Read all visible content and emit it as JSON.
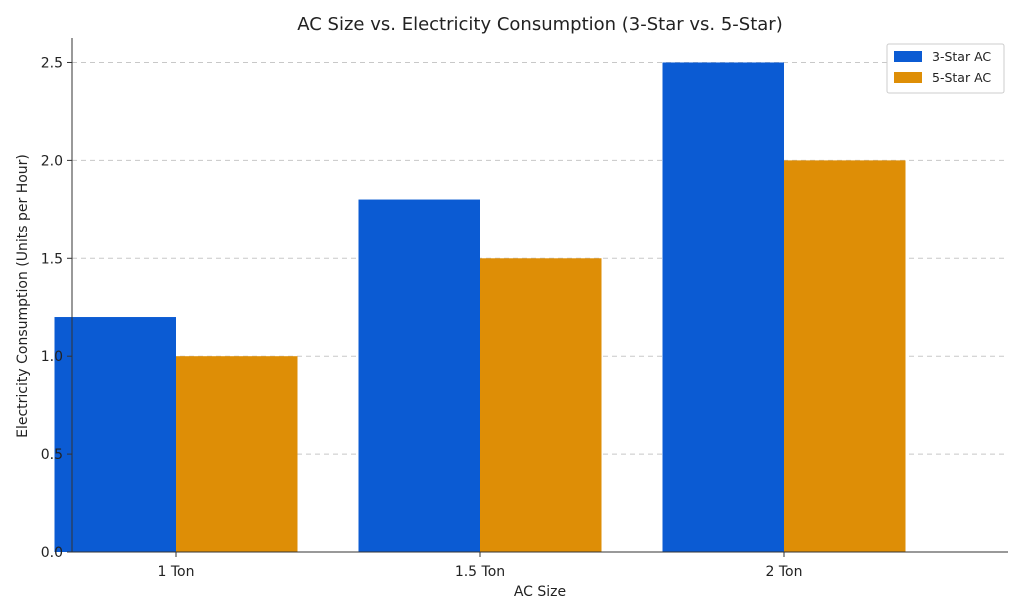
{
  "chart_data": {
    "type": "bar",
    "title": "AC Size vs. Electricity Consumption (3-Star vs. 5-Star)",
    "xlabel": "AC Size",
    "ylabel": "Electricity Consumption (Units per Hour)",
    "categories": [
      "1 Ton",
      "1.5 Ton",
      "2 Ton"
    ],
    "series": [
      {
        "name": "3-Star AC",
        "color": "#0b5bd3",
        "values": [
          1.2,
          1.8,
          2.5
        ]
      },
      {
        "name": "5-Star AC",
        "color": "#de8e06",
        "values": [
          1.0,
          1.5,
          2.0
        ]
      }
    ],
    "ylim": [
      0,
      2.625
    ],
    "yticks": [
      "0.0",
      "0.5",
      "1.0",
      "1.5",
      "2.0",
      "2.5"
    ],
    "grid": "y-dashed",
    "legend_position": "top-right"
  }
}
